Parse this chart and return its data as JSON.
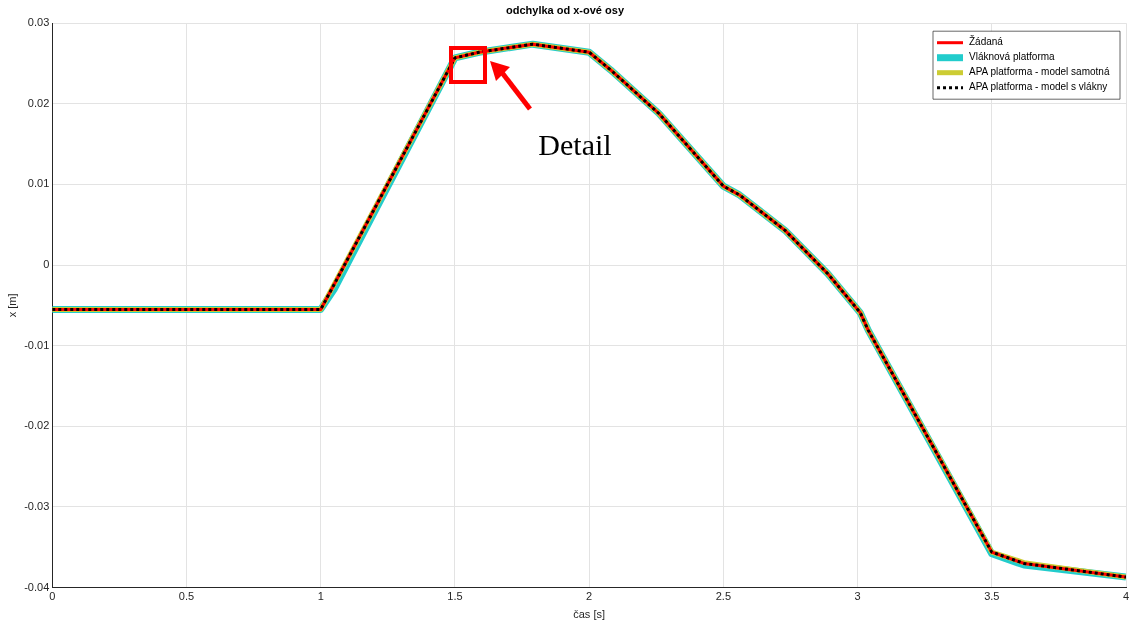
{
  "chart_data": {
    "type": "line",
    "title": "odchylka od x-ové osy",
    "xlabel": "čas [s]",
    "ylabel": "x [m]",
    "x": [
      0,
      1,
      1.05,
      1.5,
      1.59,
      1.79,
      2,
      2.08,
      2.26,
      2.5,
      2.56,
      2.73,
      2.89,
      3.01,
      3.04,
      3.5,
      3.62,
      4
    ],
    "series": [
      {
        "name": "Žádaná",
        "color": "#ff0000",
        "values": [
          -0.0055,
          -0.0055,
          -0.0024,
          0.0257,
          0.0264,
          0.0274,
          0.0264,
          0.0242,
          0.0188,
          0.0098,
          0.0087,
          0.0043,
          -0.0011,
          -0.0059,
          -0.0081,
          -0.0356,
          -0.037,
          -0.0387
        ]
      },
      {
        "name": "Vláknová platforma",
        "color": "#22cccc",
        "values": [
          -0.0055,
          -0.0055,
          -0.003,
          0.0257,
          0.0264,
          0.0274,
          0.0264,
          0.0242,
          0.0188,
          0.0098,
          0.0087,
          0.0043,
          -0.0011,
          -0.0059,
          -0.0081,
          -0.0358,
          -0.0372,
          -0.0387
        ]
      },
      {
        "name": "APA platforma - model samotná",
        "color": "#cccc33",
        "values": [
          -0.0055,
          -0.0055,
          -0.0024,
          0.0257,
          0.0264,
          0.0274,
          0.0264,
          0.0242,
          0.0188,
          0.0098,
          0.0087,
          0.0043,
          -0.0011,
          -0.0059,
          -0.0081,
          -0.0356,
          -0.0369,
          -0.0387
        ]
      },
      {
        "name": "APA platforma - model s vlákny",
        "color": "#000000",
        "line_style": "dotted",
        "values": [
          -0.0055,
          -0.0055,
          -0.0024,
          0.0257,
          0.0264,
          0.0274,
          0.0264,
          0.0242,
          0.0188,
          0.0098,
          0.0087,
          0.0043,
          -0.0011,
          -0.0059,
          -0.0081,
          -0.0356,
          -0.037,
          -0.0387
        ]
      }
    ],
    "xlim": [
      0,
      4
    ],
    "xticks": [
      0,
      0.5,
      1,
      1.5,
      2,
      2.5,
      3,
      3.5,
      4
    ],
    "ylim": [
      -0.04,
      0.03
    ],
    "yticks": [
      -0.04,
      -0.03,
      -0.02,
      -0.01,
      0,
      0.01,
      0.02,
      0.03
    ],
    "grid": true,
    "legend": "top right",
    "marker": "none",
    "annotations": [
      "Detail"
    ]
  }
}
